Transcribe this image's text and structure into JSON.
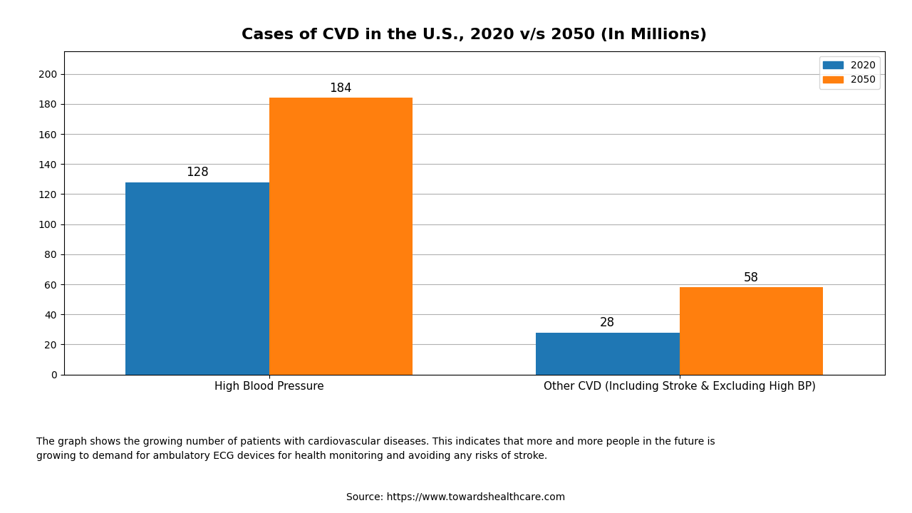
{
  "chart_data": {
    "type": "bar",
    "title": "Cases of CVD in the U.S., 2020 v/s 2050 (In Millions)",
    "categories": [
      "High Blood Pressure",
      "Other CVD (Including Stroke & Excluding High BP)"
    ],
    "series": [
      {
        "name": "2020",
        "values": [
          128,
          28
        ]
      },
      {
        "name": "2050",
        "values": [
          184,
          58
        ]
      }
    ],
    "ylim": [
      0,
      215
    ],
    "yticks": [
      0,
      20,
      40,
      60,
      80,
      100,
      120,
      140,
      160,
      180,
      200
    ],
    "grid": true,
    "legend": "upper right",
    "data_labels": true,
    "annotations": [
      "The graph shows the growing number of patients with cardiovascular diseases. This indicates that more and more people in the future is\ngrowing to demand for ambulatory ECG devices for health monitoring and avoiding any risks of stroke.",
      "Source: https://www.towardshealthcare.com"
    ]
  }
}
